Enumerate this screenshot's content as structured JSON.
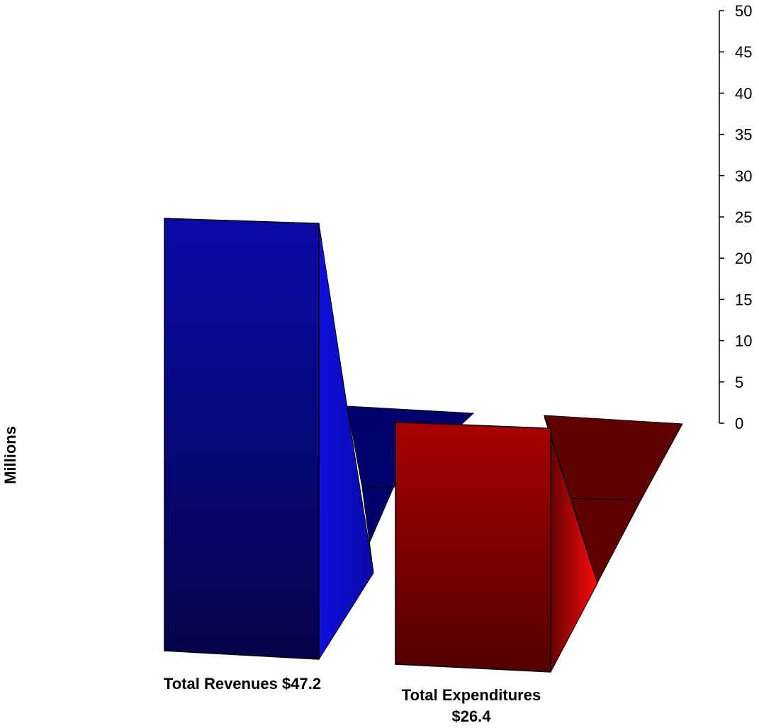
{
  "chart_data": {
    "type": "bar",
    "title": "",
    "ylabel": "Millions",
    "xlabel": "",
    "ylim": [
      0,
      50
    ],
    "y_ticks": [
      0,
      5,
      10,
      15,
      20,
      25,
      30,
      35,
      40,
      45,
      50
    ],
    "categories": [
      {
        "lines": [
          "Total Revenues $47.2"
        ]
      },
      {
        "lines": [
          "Total Expenditures",
          "$26.4"
        ]
      }
    ],
    "values": [
      47.2,
      26.4
    ],
    "grid": false,
    "legend": "none",
    "colors": {
      "revenues_front_top": "#0a0aa8",
      "revenues_front_bottom": "#05054a",
      "revenues_side": "#0f0fe0",
      "revenues_floor": "#00006e",
      "expenditures_front_top": "#a80000",
      "expenditures_front_bottom": "#520000",
      "expenditures_side": "#ff0a0a",
      "expenditures_floor": "#5e0000",
      "axis": "#000000",
      "edge": "#000000"
    }
  }
}
